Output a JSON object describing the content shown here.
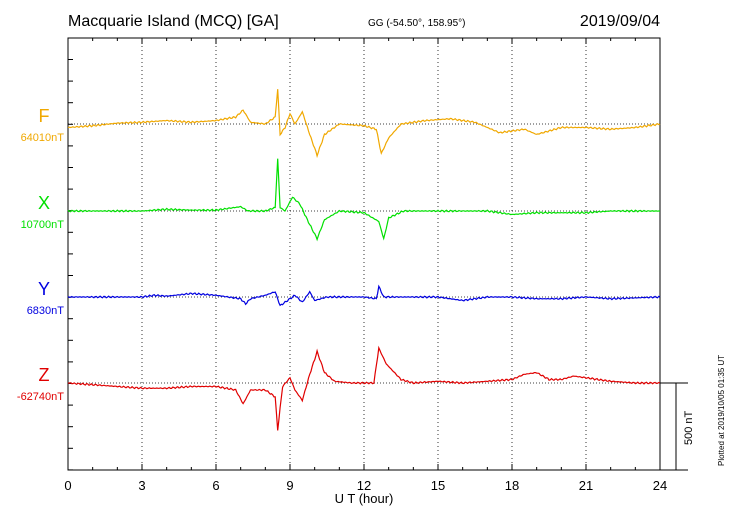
{
  "header": {
    "station": "Macquarie Island (MCQ)  [GA]",
    "coords": "GG (-54.50°, 158.95°)",
    "date": "2019/09/04"
  },
  "plotted_note": "Plotted at 2019/10/05 01:35 UT",
  "scale_label": "500 nT",
  "colors": {
    "F": "#f0a800",
    "X": "#00e000",
    "Y": "#0000e0",
    "Z": "#e00000",
    "axis": "#000000"
  },
  "chart_data": {
    "type": "line",
    "title": "Macquarie Island (MCQ)  [GA]",
    "xlabel": "U T (hour)",
    "xlim": [
      0,
      24
    ],
    "x_ticks": [
      "0",
      "3",
      "6",
      "9",
      "12",
      "15",
      "18",
      "21",
      "24"
    ],
    "grid": "dotted vertical at 3-hour intervals",
    "scale_bar_nT": 500,
    "series": [
      {
        "name": "F",
        "baseline_label": "64010nT",
        "baseline_offset_nT": 0,
        "points": [
          [
            0,
            -20
          ],
          [
            1,
            -10
          ],
          [
            2,
            5
          ],
          [
            3,
            10
          ],
          [
            4,
            20
          ],
          [
            5,
            10
          ],
          [
            6,
            20
          ],
          [
            6.8,
            40
          ],
          [
            7.1,
            80
          ],
          [
            7.4,
            10
          ],
          [
            8,
            0
          ],
          [
            8.4,
            40
          ],
          [
            8.5,
            200
          ],
          [
            8.6,
            -60
          ],
          [
            8.8,
            -20
          ],
          [
            9.0,
            60
          ],
          [
            9.2,
            0
          ],
          [
            9.5,
            70
          ],
          [
            9.8,
            -60
          ],
          [
            10.1,
            -180
          ],
          [
            10.4,
            -60
          ],
          [
            11,
            0
          ],
          [
            12,
            -10
          ],
          [
            12.5,
            -30
          ],
          [
            12.7,
            -170
          ],
          [
            13,
            -80
          ],
          [
            13.5,
            0
          ],
          [
            14.5,
            20
          ],
          [
            15.5,
            30
          ],
          [
            16.5,
            10
          ],
          [
            17.5,
            -50
          ],
          [
            18.5,
            -30
          ],
          [
            19,
            -60
          ],
          [
            19.5,
            -40
          ],
          [
            20,
            -20
          ],
          [
            21,
            -20
          ],
          [
            22,
            -30
          ],
          [
            23,
            -20
          ],
          [
            24,
            0
          ]
        ]
      },
      {
        "name": "X",
        "baseline_label": "10700nT",
        "baseline_offset_nT": 0,
        "points": [
          [
            0,
            0
          ],
          [
            1,
            0
          ],
          [
            2,
            0
          ],
          [
            3,
            0
          ],
          [
            4,
            10
          ],
          [
            5,
            5
          ],
          [
            6,
            5
          ],
          [
            7,
            25
          ],
          [
            7.3,
            0
          ],
          [
            8,
            0
          ],
          [
            8.4,
            20
          ],
          [
            8.5,
            300
          ],
          [
            8.6,
            20
          ],
          [
            8.8,
            0
          ],
          [
            9.1,
            80
          ],
          [
            9.4,
            40
          ],
          [
            9.7,
            -50
          ],
          [
            10.1,
            -160
          ],
          [
            10.4,
            -50
          ],
          [
            11,
            0
          ],
          [
            12,
            -10
          ],
          [
            12.6,
            -60
          ],
          [
            12.8,
            -160
          ],
          [
            13,
            -40
          ],
          [
            13.6,
            0
          ],
          [
            15,
            0
          ],
          [
            17,
            0
          ],
          [
            18,
            -20
          ],
          [
            19,
            -10
          ],
          [
            20,
            -10
          ],
          [
            21,
            -10
          ],
          [
            22,
            0
          ],
          [
            24,
            0
          ]
        ]
      },
      {
        "name": "Y",
        "baseline_label": "6830nT",
        "baseline_offset_nT": 0,
        "points": [
          [
            0,
            0
          ],
          [
            1,
            0
          ],
          [
            2,
            0
          ],
          [
            3,
            0
          ],
          [
            3.5,
            10
          ],
          [
            4,
            5
          ],
          [
            5,
            20
          ],
          [
            6,
            10
          ],
          [
            7,
            -10
          ],
          [
            7.2,
            -40
          ],
          [
            7.4,
            -10
          ],
          [
            8,
            10
          ],
          [
            8.4,
            30
          ],
          [
            8.6,
            -50
          ],
          [
            8.9,
            -20
          ],
          [
            9.2,
            10
          ],
          [
            9.5,
            -30
          ],
          [
            9.8,
            30
          ],
          [
            10,
            -20
          ],
          [
            10.5,
            0
          ],
          [
            12,
            0
          ],
          [
            12.5,
            -10
          ],
          [
            12.6,
            60
          ],
          [
            12.8,
            0
          ],
          [
            13,
            0
          ],
          [
            15,
            0
          ],
          [
            16,
            -20
          ],
          [
            17,
            0
          ],
          [
            18,
            0
          ],
          [
            19,
            -10
          ],
          [
            20,
            -10
          ],
          [
            21,
            0
          ],
          [
            22,
            -10
          ],
          [
            24,
            0
          ]
        ]
      },
      {
        "name": "Z",
        "baseline_label": "-62740nT",
        "baseline_offset_nT": 0,
        "points": [
          [
            0,
            0
          ],
          [
            1,
            -10
          ],
          [
            2,
            -20
          ],
          [
            3,
            -30
          ],
          [
            4,
            -30
          ],
          [
            5,
            -20
          ],
          [
            6,
            -20
          ],
          [
            6.8,
            -40
          ],
          [
            7.1,
            -120
          ],
          [
            7.4,
            -40
          ],
          [
            8,
            -40
          ],
          [
            8.4,
            -80
          ],
          [
            8.5,
            -270
          ],
          [
            8.7,
            -20
          ],
          [
            9,
            30
          ],
          [
            9.2,
            -40
          ],
          [
            9.5,
            -100
          ],
          [
            9.8,
            50
          ],
          [
            10.1,
            180
          ],
          [
            10.4,
            60
          ],
          [
            10.8,
            10
          ],
          [
            11.5,
            0
          ],
          [
            12.4,
            0
          ],
          [
            12.6,
            200
          ],
          [
            12.9,
            110
          ],
          [
            13.5,
            20
          ],
          [
            14,
            0
          ],
          [
            15,
            10
          ],
          [
            16,
            0
          ],
          [
            17,
            10
          ],
          [
            18,
            20
          ],
          [
            18.5,
            50
          ],
          [
            19,
            60
          ],
          [
            19.5,
            20
          ],
          [
            20,
            20
          ],
          [
            20.5,
            40
          ],
          [
            21,
            30
          ],
          [
            22,
            10
          ],
          [
            23,
            0
          ],
          [
            24,
            0
          ]
        ]
      }
    ]
  }
}
